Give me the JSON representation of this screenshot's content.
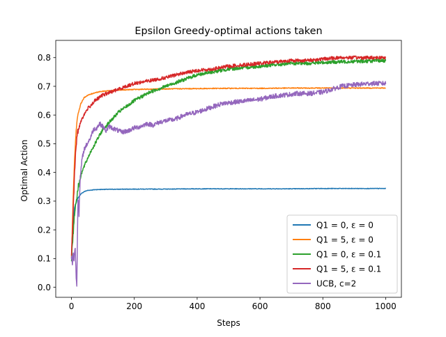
{
  "chart_data": {
    "type": "line",
    "title": "Epsilon Greedy-optimal actions taken",
    "xlabel": "Steps",
    "ylabel": "Optimal Action",
    "xlim": [
      -50,
      1050
    ],
    "ylim": [
      -0.035,
      0.86
    ],
    "xticks": [
      0,
      200,
      400,
      600,
      800,
      1000
    ],
    "yticks": [
      0.0,
      0.1,
      0.2,
      0.3,
      0.4,
      0.5,
      0.6,
      0.7,
      0.8
    ],
    "xtick_labels": [
      "0",
      "200",
      "400",
      "600",
      "800",
      "1000"
    ],
    "ytick_labels": [
      "0.0",
      "0.1",
      "0.2",
      "0.3",
      "0.4",
      "0.5",
      "0.6",
      "0.7",
      "0.8"
    ],
    "grid": false,
    "legend_position": "lower-right",
    "series": [
      {
        "name": "Q1 = 0, ε = 0",
        "color": "#1f77b4",
        "points": [
          [
            0,
            0.1
          ],
          [
            5,
            0.22
          ],
          [
            10,
            0.28
          ],
          [
            20,
            0.31
          ],
          [
            30,
            0.325
          ],
          [
            40,
            0.333
          ],
          [
            50,
            0.337
          ],
          [
            75,
            0.34
          ],
          [
            100,
            0.341
          ],
          [
            200,
            0.342
          ],
          [
            300,
            0.342
          ],
          [
            400,
            0.343
          ],
          [
            500,
            0.343
          ],
          [
            600,
            0.343
          ],
          [
            700,
            0.343
          ],
          [
            800,
            0.344
          ],
          [
            900,
            0.344
          ],
          [
            1000,
            0.344
          ]
        ]
      },
      {
        "name": "Q1 = 5, ε = 0",
        "color": "#ff7f0e",
        "points": [
          [
            0,
            0.1
          ],
          [
            5,
            0.3
          ],
          [
            10,
            0.45
          ],
          [
            15,
            0.55
          ],
          [
            20,
            0.6
          ],
          [
            30,
            0.64
          ],
          [
            40,
            0.66
          ],
          [
            50,
            0.668
          ],
          [
            75,
            0.678
          ],
          [
            100,
            0.683
          ],
          [
            150,
            0.687
          ],
          [
            200,
            0.689
          ],
          [
            300,
            0.691
          ],
          [
            400,
            0.692
          ],
          [
            500,
            0.693
          ],
          [
            600,
            0.693
          ],
          [
            700,
            0.694
          ],
          [
            800,
            0.694
          ],
          [
            900,
            0.694
          ],
          [
            1000,
            0.694
          ]
        ]
      },
      {
        "name": "Q1 = 0, ε = 0.1",
        "color": "#2ca02c",
        "points": [
          [
            0,
            0.1
          ],
          [
            10,
            0.26
          ],
          [
            20,
            0.34
          ],
          [
            30,
            0.39
          ],
          [
            40,
            0.42
          ],
          [
            60,
            0.47
          ],
          [
            80,
            0.51
          ],
          [
            100,
            0.55
          ],
          [
            125,
            0.58
          ],
          [
            150,
            0.61
          ],
          [
            200,
            0.65
          ],
          [
            250,
            0.68
          ],
          [
            300,
            0.7
          ],
          [
            350,
            0.72
          ],
          [
            400,
            0.74
          ],
          [
            450,
            0.75
          ],
          [
            500,
            0.76
          ],
          [
            550,
            0.765
          ],
          [
            600,
            0.77
          ],
          [
            650,
            0.775
          ],
          [
            700,
            0.78
          ],
          [
            750,
            0.78
          ],
          [
            800,
            0.783
          ],
          [
            850,
            0.785
          ],
          [
            900,
            0.787
          ],
          [
            950,
            0.788
          ],
          [
            1000,
            0.79
          ]
        ]
      },
      {
        "name": "Q1 = 5, ε = 0.1",
        "color": "#d62728",
        "points": [
          [
            0,
            0.1
          ],
          [
            5,
            0.25
          ],
          [
            10,
            0.4
          ],
          [
            15,
            0.5
          ],
          [
            20,
            0.54
          ],
          [
            30,
            0.58
          ],
          [
            40,
            0.6
          ],
          [
            50,
            0.62
          ],
          [
            75,
            0.65
          ],
          [
            100,
            0.67
          ],
          [
            150,
            0.69
          ],
          [
            200,
            0.71
          ],
          [
            250,
            0.72
          ],
          [
            300,
            0.73
          ],
          [
            350,
            0.745
          ],
          [
            400,
            0.755
          ],
          [
            450,
            0.76
          ],
          [
            500,
            0.77
          ],
          [
            550,
            0.775
          ],
          [
            600,
            0.78
          ],
          [
            650,
            0.785
          ],
          [
            700,
            0.79
          ],
          [
            750,
            0.79
          ],
          [
            800,
            0.795
          ],
          [
            850,
            0.8
          ],
          [
            900,
            0.8
          ],
          [
            950,
            0.8
          ],
          [
            1000,
            0.8
          ]
        ]
      },
      {
        "name": "UCB, c=2",
        "color": "#9467bd",
        "points": [
          [
            0,
            0.1
          ],
          [
            3,
            0.09
          ],
          [
            6,
            0.12
          ],
          [
            8,
            0.09
          ],
          [
            11,
            0.14
          ],
          [
            13,
            0.11
          ],
          [
            15,
            0.03
          ],
          [
            17,
            0.01
          ],
          [
            19,
            0.19
          ],
          [
            21,
            0.32
          ],
          [
            24,
            0.26
          ],
          [
            28,
            0.38
          ],
          [
            33,
            0.44
          ],
          [
            40,
            0.48
          ],
          [
            50,
            0.5
          ],
          [
            60,
            0.52
          ],
          [
            70,
            0.55
          ],
          [
            80,
            0.555
          ],
          [
            90,
            0.57
          ],
          [
            100,
            0.56
          ],
          [
            110,
            0.545
          ],
          [
            120,
            0.56
          ],
          [
            140,
            0.55
          ],
          [
            160,
            0.54
          ],
          [
            180,
            0.545
          ],
          [
            200,
            0.555
          ],
          [
            220,
            0.56
          ],
          [
            240,
            0.57
          ],
          [
            260,
            0.565
          ],
          [
            280,
            0.575
          ],
          [
            300,
            0.58
          ],
          [
            330,
            0.585
          ],
          [
            360,
            0.6
          ],
          [
            400,
            0.61
          ],
          [
            440,
            0.625
          ],
          [
            480,
            0.64
          ],
          [
            520,
            0.645
          ],
          [
            560,
            0.65
          ],
          [
            600,
            0.655
          ],
          [
            640,
            0.665
          ],
          [
            680,
            0.67
          ],
          [
            720,
            0.675
          ],
          [
            760,
            0.675
          ],
          [
            800,
            0.68
          ],
          [
            830,
            0.69
          ],
          [
            860,
            0.7
          ],
          [
            900,
            0.705
          ],
          [
            950,
            0.71
          ],
          [
            1000,
            0.71
          ]
        ]
      }
    ]
  }
}
